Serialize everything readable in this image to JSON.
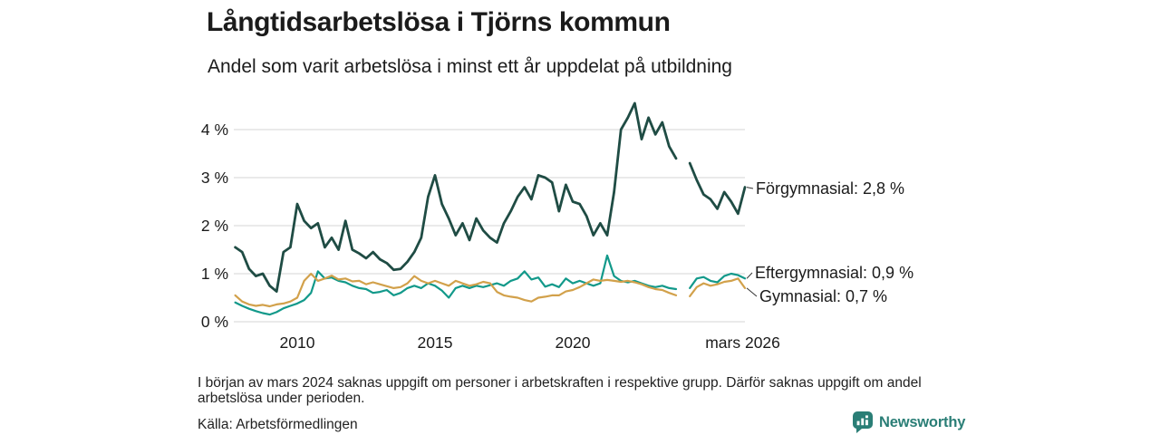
{
  "header": {
    "title": "Långtidsarbetslösa i Tjörns kommun",
    "subtitle": "Andel som varit arbetslösa i minst ett år uppdelat på utbildning"
  },
  "footer": {
    "note": "I början av mars 2024 saknas uppgift om personer i arbetskraften i respektive grupp. Därför saknas uppgift om andel arbetslösa under perioden.",
    "source": "Källa: Arbetsförmedlingen",
    "brand": "Newsworthy"
  },
  "colors": {
    "dark_green": "#1f4c44",
    "teal": "#12998a",
    "ochre": "#d2a14b",
    "grid": "#e4e4e4",
    "text": "#1b1b1b",
    "brand_teal": "#2a7e76"
  },
  "chart_data": {
    "type": "line",
    "title": "Långtidsarbetslösa i Tjörns kommun",
    "subtitle": "Andel som varit arbetslösa i minst ett år uppdelat på utbildning",
    "xlabel": "",
    "ylabel": "",
    "grid": true,
    "legend_position": "end-of-line-labels",
    "ylim": [
      0,
      4.6
    ],
    "xlim": [
      2007.75,
      2026.25
    ],
    "y_ticks": [
      {
        "label": "0 %",
        "value": 0
      },
      {
        "label": "1 %",
        "value": 1
      },
      {
        "label": "2 %",
        "value": 2
      },
      {
        "label": "3 %",
        "value": 3
      },
      {
        "label": "4 %",
        "value": 4
      }
    ],
    "x_ticks": [
      {
        "label": "2010",
        "year": 2010
      },
      {
        "label": "2015",
        "year": 2015
      },
      {
        "label": "2020",
        "year": 2020
      },
      {
        "label": "mars 2026",
        "year": 2026.17
      }
    ],
    "missing_data_period": "mars 2024",
    "x": [
      2007.75,
      2008,
      2008.25,
      2008.5,
      2008.75,
      2009,
      2009.25,
      2009.5,
      2009.75,
      2010,
      2010.25,
      2010.5,
      2010.75,
      2011,
      2011.25,
      2011.5,
      2011.75,
      2012,
      2012.25,
      2012.5,
      2012.75,
      2013,
      2013.25,
      2013.5,
      2013.75,
      2014,
      2014.25,
      2014.5,
      2014.75,
      2015,
      2015.25,
      2015.5,
      2015.75,
      2016,
      2016.25,
      2016.5,
      2016.75,
      2017,
      2017.25,
      2017.5,
      2017.75,
      2018,
      2018.25,
      2018.5,
      2018.75,
      2019,
      2019.25,
      2019.5,
      2019.75,
      2020,
      2020.25,
      2020.5,
      2020.75,
      2021,
      2021.25,
      2021.5,
      2021.75,
      2022,
      2022.25,
      2022.5,
      2022.75,
      2023,
      2023.25,
      2023.5,
      2023.75,
      2024,
      2024.25,
      2024.5,
      2024.75,
      2025,
      2025.25,
      2025.5,
      2025.75,
      2026,
      2026.25
    ],
    "series": [
      {
        "name": "Förgymnasial",
        "slug": "forgymnasial",
        "end_label": "Förgymnasial: 2,8 %",
        "end_value": "2,8 %",
        "color": "#1f4c44",
        "values": [
          1.55,
          1.45,
          1.1,
          0.95,
          1.0,
          0.75,
          0.63,
          1.45,
          1.55,
          2.45,
          2.1,
          1.95,
          2.05,
          1.55,
          1.75,
          1.5,
          2.1,
          1.5,
          1.42,
          1.32,
          1.45,
          1.3,
          1.22,
          1.08,
          1.1,
          1.25,
          1.45,
          1.75,
          2.6,
          3.05,
          2.45,
          2.15,
          1.8,
          2.05,
          1.7,
          2.15,
          1.9,
          1.75,
          1.65,
          2.05,
          2.3,
          2.6,
          2.8,
          2.55,
          3.05,
          3.0,
          2.9,
          2.3,
          2.85,
          2.5,
          2.45,
          2.2,
          1.8,
          2.05,
          1.8,
          2.7,
          4.0,
          4.25,
          4.55,
          3.8,
          4.25,
          3.9,
          4.15,
          3.65,
          3.4,
          null,
          3.3,
          2.95,
          2.65,
          2.55,
          2.35,
          2.7,
          2.5,
          2.25,
          2.8
        ]
      },
      {
        "name": "Eftergymnasial",
        "slug": "eftergymnasial",
        "end_label": "Eftergymnasial: 0,9 %",
        "end_value": "0,9 %",
        "color": "#12998a",
        "values": [
          0.4,
          0.33,
          0.27,
          0.22,
          0.18,
          0.15,
          0.2,
          0.28,
          0.33,
          0.38,
          0.45,
          0.6,
          1.05,
          0.9,
          0.92,
          0.85,
          0.82,
          0.75,
          0.7,
          0.68,
          0.6,
          0.62,
          0.66,
          0.55,
          0.6,
          0.7,
          0.75,
          0.7,
          0.8,
          0.75,
          0.65,
          0.5,
          0.7,
          0.75,
          0.7,
          0.75,
          0.72,
          0.76,
          0.8,
          0.75,
          0.85,
          0.9,
          1.05,
          0.88,
          0.92,
          0.73,
          0.78,
          0.72,
          0.9,
          0.8,
          0.85,
          0.8,
          0.75,
          0.8,
          1.38,
          0.95,
          0.85,
          0.82,
          0.85,
          0.8,
          0.75,
          0.72,
          0.75,
          0.7,
          0.68,
          null,
          0.7,
          0.9,
          0.93,
          0.85,
          0.82,
          0.95,
          1.0,
          0.97,
          0.9
        ]
      },
      {
        "name": "Gymnasial",
        "slug": "gymnasial",
        "end_label": "Gymnasial: 0,7 %",
        "end_value": "0,7 %",
        "color": "#d2a14b",
        "values": [
          0.55,
          0.42,
          0.36,
          0.33,
          0.35,
          0.32,
          0.36,
          0.38,
          0.42,
          0.5,
          0.85,
          1.0,
          0.85,
          0.9,
          0.96,
          0.88,
          0.9,
          0.84,
          0.85,
          0.78,
          0.82,
          0.78,
          0.74,
          0.7,
          0.72,
          0.8,
          0.95,
          0.85,
          0.8,
          0.85,
          0.8,
          0.75,
          0.85,
          0.8,
          0.75,
          0.78,
          0.83,
          0.8,
          0.62,
          0.55,
          0.52,
          0.5,
          0.45,
          0.42,
          0.5,
          0.52,
          0.55,
          0.55,
          0.63,
          0.66,
          0.72,
          0.8,
          0.88,
          0.85,
          0.87,
          0.85,
          0.83,
          0.85,
          0.82,
          0.78,
          0.72,
          0.68,
          0.66,
          0.6,
          0.55,
          null,
          0.53,
          0.72,
          0.8,
          0.75,
          0.78,
          0.83,
          0.85,
          0.9,
          0.7
        ]
      }
    ]
  }
}
